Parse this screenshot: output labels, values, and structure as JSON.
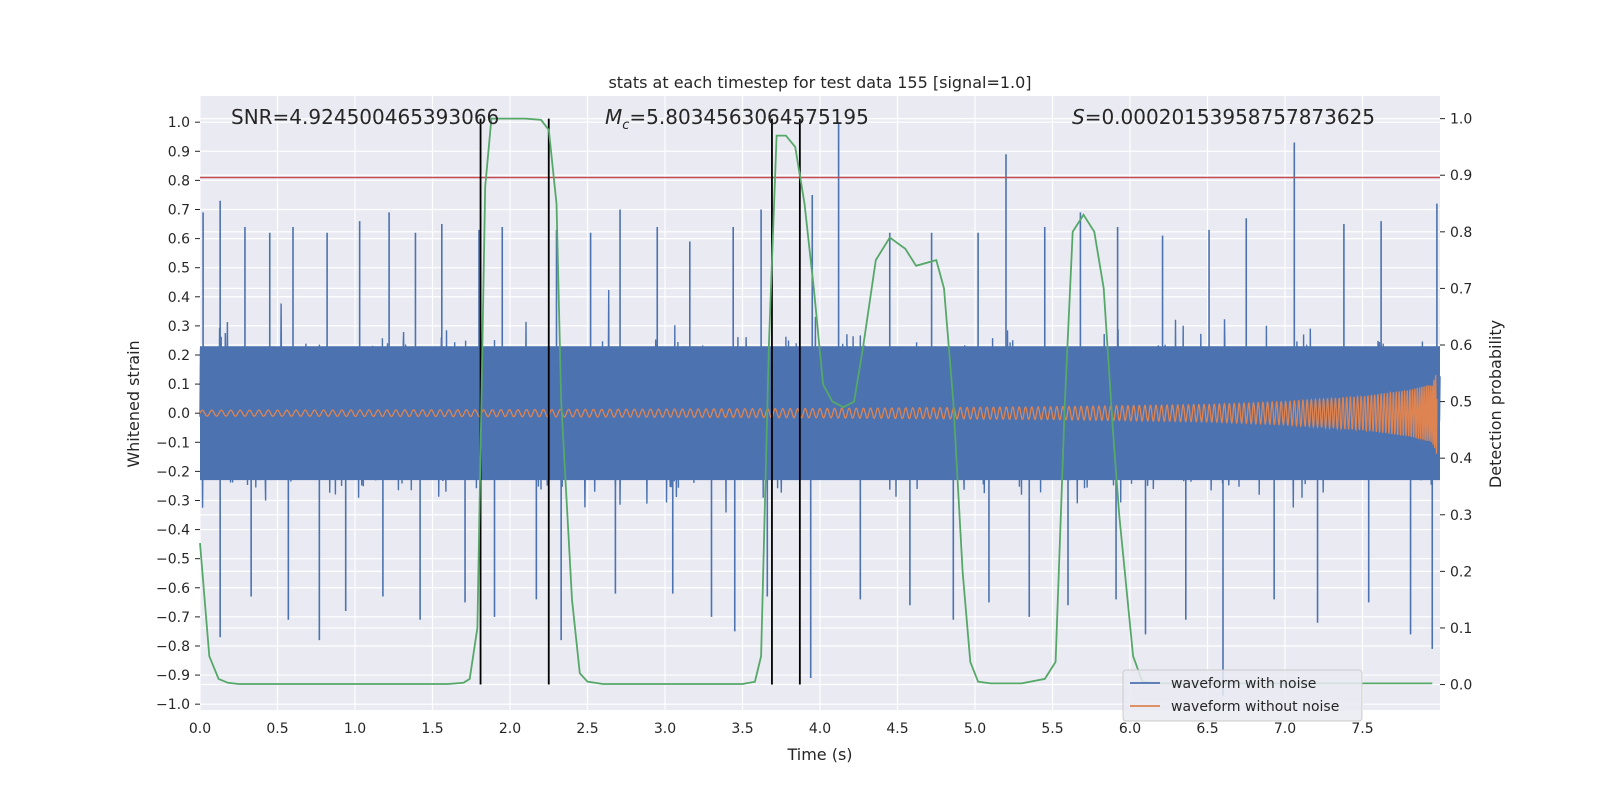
{
  "chart_data": {
    "type": "line",
    "title": "stats at each timestep for test data 155 [signal=1.0]",
    "xlabel": "Time (s)",
    "ylabel_left": "Whitened strain",
    "ylabel_right": "Detection probability",
    "xlim": [
      0.0,
      8.0
    ],
    "ylim_left": [
      -1.02,
      1.09
    ],
    "ylim_right": [
      -0.045,
      1.04
    ],
    "x_ticks": [
      "0.0",
      "0.5",
      "1.0",
      "1.5",
      "2.0",
      "2.5",
      "3.0",
      "3.5",
      "4.0",
      "4.5",
      "5.0",
      "5.5",
      "6.0",
      "6.5",
      "7.0",
      "7.5"
    ],
    "y_left_ticks": [
      "1.0",
      "0.9",
      "0.8",
      "0.7",
      "0.6",
      "0.5",
      "0.4",
      "0.3",
      "0.2",
      "0.1",
      "0.0",
      "−0.1",
      "−0.2",
      "−0.3",
      "−0.4",
      "−0.5",
      "−0.6",
      "−0.7",
      "−0.8",
      "−0.9",
      "−1.0"
    ],
    "y_right_ticks": [
      "1.0",
      "0.9",
      "0.8",
      "0.7",
      "0.6",
      "0.5",
      "0.4",
      "0.3",
      "0.2",
      "0.1",
      "0.0"
    ],
    "grid": true,
    "legend_position": "bottom-right",
    "annotations": {
      "snr": "SNR=4.924500465393066",
      "mc_symbol": "M",
      "mc_sub": "c",
      "mc_value": "=5.8034563064575195",
      "s_symbol": "S",
      "s_value": "=0.00020153958757873625"
    },
    "series": [
      {
        "name": "waveform with noise",
        "color": "#4c72b0",
        "description": "dense noisy whitened strain",
        "envelope_typical": [
          -0.2,
          0.2
        ],
        "spikes_max": [
          [
            0.02,
            0.69
          ],
          [
            0.13,
            0.73
          ],
          [
            0.29,
            0.64
          ],
          [
            0.45,
            0.62
          ],
          [
            0.6,
            0.64
          ],
          [
            0.82,
            0.62
          ],
          [
            1.03,
            0.66
          ],
          [
            1.22,
            0.69
          ],
          [
            1.39,
            0.62
          ],
          [
            1.56,
            0.65
          ],
          [
            1.8,
            0.63
          ],
          [
            1.95,
            0.64
          ],
          [
            2.3,
            0.63
          ],
          [
            2.52,
            0.62
          ],
          [
            2.71,
            0.7
          ],
          [
            2.95,
            0.64
          ],
          [
            3.16,
            0.59
          ],
          [
            3.44,
            0.64
          ],
          [
            3.62,
            0.7
          ],
          [
            3.95,
            0.75
          ],
          [
            4.12,
            1.0
          ],
          [
            4.45,
            0.62
          ],
          [
            4.72,
            0.62
          ],
          [
            5.02,
            0.62
          ],
          [
            5.2,
            0.89
          ],
          [
            5.45,
            0.64
          ],
          [
            5.68,
            0.69
          ],
          [
            5.92,
            0.64
          ],
          [
            6.21,
            0.61
          ],
          [
            6.51,
            0.63
          ],
          [
            6.75,
            0.67
          ],
          [
            7.06,
            0.93
          ],
          [
            7.38,
            0.65
          ],
          [
            7.62,
            0.66
          ],
          [
            7.98,
            0.72
          ]
        ],
        "spikes_min": [
          [
            0.13,
            -0.77
          ],
          [
            0.33,
            -0.63
          ],
          [
            0.57,
            -0.71
          ],
          [
            0.77,
            -0.78
          ],
          [
            0.94,
            -0.68
          ],
          [
            1.18,
            -0.63
          ],
          [
            1.42,
            -0.71
          ],
          [
            1.71,
            -0.65
          ],
          [
            1.9,
            -0.7
          ],
          [
            2.17,
            -0.64
          ],
          [
            2.33,
            -0.78
          ],
          [
            2.68,
            -0.62
          ],
          [
            3.05,
            -0.62
          ],
          [
            3.3,
            -0.7
          ],
          [
            3.45,
            -0.75
          ],
          [
            3.66,
            -0.63
          ],
          [
            3.94,
            -0.91
          ],
          [
            4.26,
            -0.64
          ],
          [
            4.58,
            -0.66
          ],
          [
            4.86,
            -0.71
          ],
          [
            5.09,
            -0.65
          ],
          [
            5.35,
            -0.7
          ],
          [
            5.6,
            -0.66
          ],
          [
            5.91,
            -0.64
          ],
          [
            6.1,
            -0.76
          ],
          [
            6.36,
            -0.71
          ],
          [
            6.6,
            -0.97
          ],
          [
            6.93,
            -0.64
          ],
          [
            7.21,
            -0.72
          ],
          [
            7.54,
            -0.65
          ],
          [
            7.81,
            -0.76
          ],
          [
            7.95,
            -0.81
          ]
        ]
      },
      {
        "name": "waveform without noise",
        "color": "#dd8452",
        "description": "chirp: amplitude grows toward end",
        "amplitude": [
          [
            0.0,
            0.01
          ],
          [
            2.0,
            0.012
          ],
          [
            4.0,
            0.016
          ],
          [
            5.5,
            0.022
          ],
          [
            6.5,
            0.03
          ],
          [
            7.0,
            0.04
          ],
          [
            7.5,
            0.058
          ],
          [
            7.8,
            0.08
          ],
          [
            7.95,
            0.1
          ],
          [
            7.98,
            0.15
          ]
        ]
      },
      {
        "name": "detection probability",
        "color": "#55a868",
        "axis": "right",
        "x": [
          0.0,
          0.06,
          0.12,
          0.18,
          0.25,
          0.5,
          1.0,
          1.5,
          1.6,
          1.7,
          1.74,
          1.79,
          1.84,
          1.88,
          1.95,
          2.1,
          2.2,
          2.25,
          2.3,
          2.33,
          2.4,
          2.45,
          2.5,
          2.6,
          3.0,
          3.5,
          3.58,
          3.62,
          3.67,
          3.72,
          3.78,
          3.84,
          3.9,
          3.96,
          4.02,
          4.08,
          4.15,
          4.22,
          4.28,
          4.36,
          4.45,
          4.55,
          4.62,
          4.75,
          4.8,
          4.86,
          4.92,
          4.97,
          5.02,
          5.1,
          5.3,
          5.45,
          5.52,
          5.58,
          5.63,
          5.7,
          5.77,
          5.83,
          5.89,
          5.93,
          6.02,
          6.08,
          6.2,
          6.5,
          7.0,
          7.5,
          7.95
        ],
        "y": [
          0.25,
          0.05,
          0.01,
          0.003,
          0.001,
          0.001,
          0.001,
          0.001,
          0.001,
          0.003,
          0.01,
          0.1,
          0.88,
          1.0,
          1.0,
          1.0,
          0.998,
          0.98,
          0.85,
          0.5,
          0.15,
          0.02,
          0.005,
          0.001,
          0.001,
          0.001,
          0.005,
          0.05,
          0.6,
          0.97,
          0.97,
          0.95,
          0.85,
          0.7,
          0.53,
          0.5,
          0.49,
          0.5,
          0.6,
          0.75,
          0.79,
          0.77,
          0.74,
          0.75,
          0.7,
          0.5,
          0.2,
          0.04,
          0.005,
          0.002,
          0.002,
          0.01,
          0.04,
          0.5,
          0.8,
          0.83,
          0.8,
          0.7,
          0.45,
          0.3,
          0.05,
          0.005,
          0.002,
          0.002,
          0.002,
          0.002,
          0.002
        ]
      }
    ],
    "hlines": [
      {
        "axis": "left",
        "y": 0.81,
        "color": "#c44e52"
      }
    ],
    "vlines": [
      {
        "x": 1.81,
        "y_right_range": [
          0.0,
          1.0
        ],
        "color": "#000000"
      },
      {
        "x": 2.25,
        "y_right_range": [
          0.0,
          1.0
        ],
        "color": "#000000"
      },
      {
        "x": 3.69,
        "y_right_range": [
          0.0,
          1.0
        ],
        "color": "#000000"
      },
      {
        "x": 3.87,
        "y_right_range": [
          0.0,
          1.0
        ],
        "color": "#000000"
      }
    ]
  }
}
